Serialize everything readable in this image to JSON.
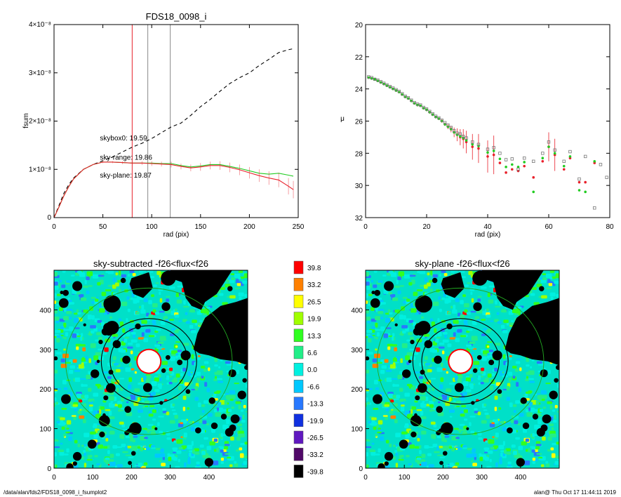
{
  "footer": {
    "path": "/data/alan/fds2/FDS18_0098_i_fsumplot2",
    "stamp": "alan@  Thu Oct 17 11:44:11 2019"
  },
  "chart_data": [
    {
      "type": "line",
      "title": "FDS18_0098_i",
      "xlabel": "rad (pix)",
      "ylabel": "fsum",
      "xlim": [
        0,
        250
      ],
      "ylim": [
        0,
        4e-08
      ],
      "xticks": [
        "0",
        "50",
        "100",
        "150",
        "200",
        "250"
      ],
      "yticks": [
        "0",
        "1×10⁻⁸",
        "2×10⁻⁸",
        "3×10⁻⁸",
        "4×10⁻⁸"
      ],
      "vlines": [
        {
          "x": 80,
          "color": "#e8202a"
        },
        {
          "x": 96,
          "color": "#888888"
        },
        {
          "x": 119,
          "color": "#888888"
        }
      ],
      "annotations": [
        {
          "text": "skybox0: 19.59",
          "color": "#000000",
          "x": 47,
          "y": 1.6e-08
        },
        {
          "text": "sky-range: 19.86",
          "color": "#e8202a",
          "x": 47,
          "y": 1.2e-08
        },
        {
          "text": "sky-plane: 19.87",
          "color": "#22cc22",
          "x": 47,
          "y": 8.3e-09
        }
      ],
      "series": [
        {
          "style": "dashed",
          "color": "#000000",
          "x": [
            0,
            5,
            10,
            15,
            20,
            30,
            40,
            50,
            60,
            70,
            80,
            90,
            100,
            110,
            120,
            130,
            140,
            150,
            160,
            170,
            180,
            190,
            200,
            210,
            220,
            230,
            240,
            245
          ],
          "y": [
            0,
            2.5e-09,
            5e-09,
            6.8e-09,
            8.2e-09,
            1e-08,
            1.1e-08,
            1.18e-08,
            1.26e-08,
            1.36e-08,
            1.46e-08,
            1.54e-08,
            1.64e-08,
            1.76e-08,
            1.88e-08,
            1.96e-08,
            2.12e-08,
            2.3e-08,
            2.45e-08,
            2.62e-08,
            2.78e-08,
            2.9e-08,
            3e-08,
            3.15e-08,
            3.28e-08,
            3.42e-08,
            3.48e-08,
            3.5e-08
          ]
        },
        {
          "style": "solid",
          "color": "#22cc22",
          "x": [
            0,
            5,
            10,
            15,
            20,
            30,
            40,
            50,
            60,
            70,
            80,
            90,
            100,
            110,
            120,
            130,
            140,
            150,
            160,
            170,
            180,
            190,
            200,
            210,
            220,
            230,
            240,
            245
          ],
          "y": [
            0,
            2.2e-09,
            4.5e-09,
            6.4e-09,
            8e-09,
            1e-08,
            1.1e-08,
            1.15e-08,
            1.15e-08,
            1.14e-08,
            1.13e-08,
            1.13e-08,
            1.13e-08,
            1.12e-08,
            1.12e-08,
            1.08e-08,
            1.05e-08,
            1.07e-08,
            1.1e-08,
            1.1e-08,
            1.06e-08,
            1.02e-08,
            9.7e-09,
            9.2e-09,
            9e-09,
            9.2e-09,
            8.8e-09,
            8.6e-09
          ]
        },
        {
          "style": "solid",
          "color": "#e8202a",
          "errorbars": true,
          "x": [
            0,
            5,
            10,
            15,
            20,
            30,
            40,
            50,
            60,
            70,
            80,
            90,
            100,
            110,
            120,
            130,
            140,
            150,
            160,
            170,
            180,
            190,
            200,
            210,
            220,
            230,
            240,
            245
          ],
          "y": [
            0,
            2.2e-09,
            4.5e-09,
            6.4e-09,
            8e-09,
            1e-08,
            1.1e-08,
            1.15e-08,
            1.15e-08,
            1.14e-08,
            1.13e-08,
            1.13e-08,
            1.12e-08,
            1.11e-08,
            1.1e-08,
            1.06e-08,
            1.03e-08,
            1.05e-08,
            1.08e-08,
            1.08e-08,
            1.04e-08,
            9.9e-09,
            9.3e-09,
            8.7e-09,
            8.2e-09,
            7.8e-09,
            6.5e-09,
            5.8e-09
          ],
          "err": [
            0,
            0,
            0,
            0,
            0,
            1e-10,
            1e-10,
            2e-10,
            2e-10,
            3e-10,
            4e-10,
            4e-10,
            5e-10,
            5e-10,
            6e-10,
            6e-10,
            7e-10,
            8e-10,
            8e-10,
            9e-10,
            1e-09,
            1.1e-09,
            1.2e-09,
            1.3e-09,
            1.4e-09,
            1.5e-09,
            1.7e-09,
            1.8e-09
          ]
        }
      ]
    },
    {
      "type": "scatter",
      "title": "",
      "xlabel": "rad (pix)",
      "ylabel": "μ",
      "xlim": [
        0,
        80
      ],
      "ylim": [
        32,
        20
      ],
      "xticks": [
        "0",
        "20",
        "40",
        "60",
        "80"
      ],
      "yticks": [
        "20",
        "22",
        "24",
        "26",
        "28",
        "30",
        "32"
      ],
      "series": [
        {
          "color": "#e8202a",
          "x": [
            1,
            2,
            3,
            4,
            5,
            6,
            7,
            8,
            9,
            10,
            11,
            12,
            13,
            14,
            15,
            16,
            17,
            18,
            19,
            20,
            21,
            22,
            23,
            24,
            25,
            26,
            27,
            28,
            29,
            30,
            31,
            32,
            33,
            35,
            37,
            40,
            42,
            44,
            46,
            48,
            50,
            52,
            55,
            58,
            60,
            62,
            65,
            67,
            70,
            72,
            75
          ],
          "y": [
            23.3,
            23.35,
            23.4,
            23.5,
            23.6,
            23.7,
            23.8,
            23.9,
            24.0,
            24.1,
            24.2,
            24.35,
            24.5,
            24.6,
            24.75,
            24.9,
            25.0,
            25.05,
            25.2,
            25.3,
            25.45,
            25.6,
            25.75,
            25.85,
            26.0,
            26.2,
            26.35,
            26.5,
            26.7,
            26.85,
            27.0,
            27.1,
            27.3,
            27.6,
            27.7,
            28.2,
            28.1,
            28.6,
            29.2,
            29.0,
            29.1,
            28.8,
            29.5,
            28.5,
            27.6,
            28.1,
            29.0,
            28.3,
            29.8,
            29.8,
            28.6
          ],
          "err": [
            0,
            0,
            0,
            0,
            0,
            0,
            0,
            0,
            0,
            0,
            0,
            0,
            0,
            0,
            0,
            0,
            0,
            0,
            0,
            0,
            0,
            0,
            0.05,
            0.05,
            0.1,
            0.1,
            0.15,
            0.2,
            0.3,
            0.4,
            0.5,
            0.6,
            0.7,
            0.8,
            0.9,
            1.0,
            1.2,
            0,
            0,
            0,
            0,
            0,
            0,
            0,
            0.9,
            1.0,
            0,
            0,
            0,
            0,
            0
          ]
        },
        {
          "color": "#22cc22",
          "x": [
            1,
            2,
            3,
            4,
            5,
            6,
            7,
            8,
            9,
            10,
            11,
            12,
            13,
            14,
            15,
            16,
            17,
            18,
            19,
            20,
            21,
            22,
            23,
            24,
            25,
            26,
            27,
            28,
            29,
            30,
            31,
            32,
            33,
            35,
            37,
            40,
            42,
            44,
            46,
            48,
            50,
            52,
            55,
            58,
            60,
            62,
            65,
            67,
            70,
            72,
            75
          ],
          "y": [
            23.3,
            23.35,
            23.4,
            23.5,
            23.6,
            23.7,
            23.8,
            23.9,
            24.0,
            24.1,
            24.2,
            24.35,
            24.5,
            24.6,
            24.75,
            24.9,
            25.0,
            25.05,
            25.2,
            25.3,
            25.45,
            25.6,
            25.75,
            25.85,
            26.0,
            26.2,
            26.35,
            26.5,
            26.7,
            26.85,
            26.95,
            27.05,
            27.2,
            27.45,
            27.55,
            27.95,
            27.85,
            28.35,
            28.85,
            28.7,
            28.85,
            28.55,
            30.4,
            28.3,
            27.6,
            28.0,
            28.8,
            28.2,
            30.3,
            30.4,
            28.5
          ],
          "err": []
        },
        {
          "color": "#777777",
          "hollow": true,
          "x": [
            1,
            2,
            3,
            4,
            5,
            6,
            7,
            8,
            9,
            10,
            11,
            12,
            13,
            14,
            15,
            16,
            17,
            18,
            19,
            20,
            21,
            22,
            23,
            24,
            25,
            26,
            27,
            28,
            29,
            30,
            31,
            32,
            33,
            35,
            37,
            40,
            42,
            44,
            46,
            48,
            50,
            52,
            55,
            58,
            60,
            62,
            65,
            67,
            70,
            72,
            75,
            77,
            79
          ],
          "y": [
            23.25,
            23.3,
            23.4,
            23.45,
            23.55,
            23.65,
            23.75,
            23.85,
            23.95,
            24.05,
            24.15,
            24.3,
            24.45,
            24.55,
            24.7,
            24.85,
            24.95,
            25.0,
            25.15,
            25.25,
            25.4,
            25.55,
            25.7,
            25.8,
            25.95,
            26.1,
            26.25,
            26.4,
            26.6,
            26.75,
            26.8,
            26.95,
            27.05,
            27.3,
            27.45,
            27.75,
            27.65,
            28.0,
            28.4,
            28.35,
            29.0,
            28.3,
            28.5,
            28.0,
            27.3,
            27.8,
            28.5,
            27.9,
            29.6,
            28.2,
            31.4,
            28.7,
            29.5
          ],
          "err": []
        }
      ]
    },
    {
      "type": "heatmap",
      "title": "sky-subtracted -f26<flux<f26",
      "xlim": [
        0,
        500
      ],
      "ylim": [
        0,
        500
      ],
      "xticks": [
        "0",
        "100",
        "200",
        "300",
        "400"
      ],
      "yticks": [
        "0",
        "100",
        "200",
        "300",
        "400"
      ],
      "colorbar_levels": [
        "39.8",
        "33.2",
        "26.5",
        "19.9",
        "13.3",
        "6.6",
        "0.0",
        "-6.6",
        "-13.3",
        "-19.9",
        "-26.5",
        "-33.2",
        "-39.8"
      ],
      "colorbar_colors": [
        "#ff0000",
        "#ff8000",
        "#ffff00",
        "#a0ff00",
        "#30ff20",
        "#22ee88",
        "#00f0e0",
        "#00c8ff",
        "#2878ff",
        "#1030e0",
        "#6018c0",
        "#500868",
        "#000000"
      ],
      "center": [
        245,
        270
      ],
      "ellipses": [
        [
          123,
          108
        ],
        [
          100,
          90
        ]
      ]
    },
    {
      "type": "heatmap",
      "title": "sky-plane -f26<flux<f26",
      "xlim": [
        0,
        500
      ],
      "ylim": [
        0,
        500
      ],
      "xticks": [
        "0",
        "100",
        "200",
        "300",
        "400"
      ],
      "yticks": [
        "0",
        "100",
        "200",
        "300",
        "400"
      ],
      "center": [
        245,
        270
      ],
      "ellipses": [
        [
          123,
          108
        ],
        [
          100,
          90
        ]
      ]
    }
  ]
}
